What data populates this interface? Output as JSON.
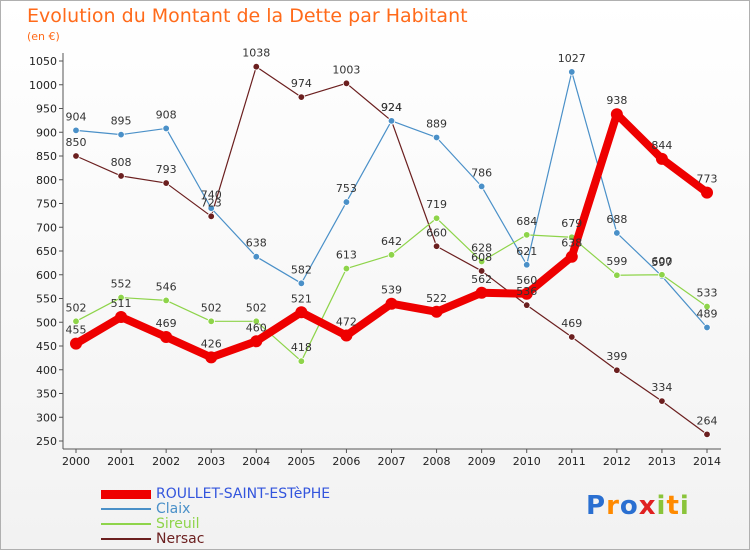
{
  "title": "Evolution du Montant de la Dette par Habitant",
  "subtitle": "(en €)",
  "logo_text": "Proxiti",
  "chart_data": {
    "type": "line",
    "x": [
      "2000",
      "2001",
      "2002",
      "2003",
      "2004",
      "2005",
      "2006",
      "2007",
      "2008",
      "2009",
      "2010",
      "2011",
      "2012",
      "2013",
      "2014"
    ],
    "ylim": [
      250,
      1050
    ],
    "yticks": [
      250,
      300,
      350,
      400,
      450,
      500,
      550,
      600,
      650,
      700,
      750,
      800,
      850,
      900,
      950,
      1000,
      1050
    ],
    "grid": false,
    "legend_placement": "bottom-left",
    "series": [
      {
        "name": "ROULLET-SAINT-ESTèPHE",
        "color": "#ee0000",
        "values": [
          455,
          511,
          469,
          426,
          460,
          521,
          472,
          539,
          522,
          562,
          560,
          638,
          938,
          844,
          773
        ]
      },
      {
        "name": "Claix",
        "color": "#4a90c8",
        "values": [
          904,
          895,
          908,
          740,
          638,
          582,
          753,
          924,
          889,
          786,
          621,
          1027,
          688,
          597,
          489
        ]
      },
      {
        "name": "Sireuil",
        "color": "#8ed44a",
        "values": [
          502,
          552,
          546,
          502,
          502,
          418,
          613,
          642,
          719,
          628,
          684,
          679,
          599,
          600,
          533
        ]
      },
      {
        "name": "Nersac",
        "color": "#6b1f1f",
        "values": [
          850,
          808,
          793,
          723,
          1038,
          974,
          1003,
          924,
          660,
          608,
          536,
          469,
          399,
          334,
          264
        ]
      }
    ]
  }
}
